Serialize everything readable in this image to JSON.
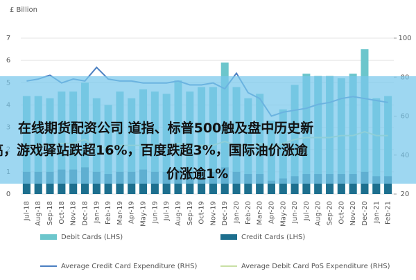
{
  "chart_data": {
    "type": "bar",
    "y_label": "£ Billion",
    "categories": [
      "Jul-18",
      "Aug-18",
      "Sep-18",
      "Oct-18",
      "Nov-18",
      "Dec-18",
      "Jan-19",
      "Feb-19",
      "Mar-19",
      "Apr-19",
      "May-19",
      "Jun-19",
      "Jul-19",
      "Aug-19",
      "Sep-19",
      "Oct-19",
      "Nov-19",
      "Dec-19",
      "Jan-20",
      "Feb-20",
      "Mar-20",
      "Apr-20",
      "May-20",
      "Jun-20",
      "Jul-20",
      "Aug-20",
      "Sep-20",
      "Oct-20",
      "Nov-20",
      "Dec-20",
      "Jan-21",
      "Feb-21"
    ],
    "series": [
      {
        "name": "Debit Cards (LHS)",
        "type": "bar",
        "color": "#6cc6cc",
        "values": [
          4.4,
          4.4,
          4.3,
          4.6,
          4.6,
          5.0,
          4.3,
          4.0,
          4.6,
          4.3,
          4.7,
          4.6,
          4.5,
          5.1,
          4.6,
          4.8,
          4.8,
          5.9,
          4.8,
          4.3,
          4.5,
          3.3,
          3.8,
          4.9,
          5.4,
          5.3,
          5.3,
          5.2,
          5.4,
          6.5,
          4.3,
          4.4
        ]
      },
      {
        "name": "Credit Cards (LHS)",
        "type": "bar",
        "color": "#1d6f8e",
        "values": [
          1.0,
          1.0,
          1.0,
          1.1,
          1.1,
          1.2,
          1.0,
          0.9,
          1.0,
          1.0,
          1.1,
          1.0,
          1.0,
          1.1,
          1.0,
          1.1,
          1.0,
          1.2,
          1.0,
          0.9,
          0.9,
          0.6,
          0.7,
          0.8,
          0.9,
          0.9,
          0.9,
          0.9,
          0.9,
          1.0,
          0.8,
          0.8
        ]
      },
      {
        "name": "Average Credit Card Expenditure (RHS)",
        "type": "line",
        "axis": "y2",
        "color": "#4a7fc1",
        "values": [
          78,
          79,
          81,
          77,
          79,
          78,
          85,
          79,
          78,
          78,
          77,
          77,
          77,
          78,
          76,
          76,
          77,
          74,
          82,
          72,
          69,
          60,
          62,
          63,
          64,
          66,
          67,
          69,
          70,
          69,
          68,
          67
        ]
      },
      {
        "name": "Average Debit Card PoS Expenditure (RHS)",
        "type": "line",
        "axis": "y2",
        "color": "#c8e0a4",
        "values": [
          45,
          45,
          45,
          46,
          46,
          48,
          44,
          44,
          45,
          45,
          45,
          45,
          45,
          46,
          45,
          45,
          45,
          47,
          45,
          45,
          46,
          44,
          46,
          48,
          49,
          49,
          49,
          50,
          50,
          52,
          50,
          50
        ]
      }
    ],
    "ylim": [
      0,
      7
    ],
    "yticks": [
      0,
      1,
      2,
      3,
      4,
      5,
      6,
      7
    ],
    "y2lim": [
      20,
      100
    ],
    "y2ticks": [
      20,
      40,
      60,
      80,
      100
    ]
  },
  "overlay": {
    "lines": [
      "在线期货配资公司 道指、标普500触及盘中历史新",
      "高，游戏驿站跌超16%，百度跌超3%，国际油价涨逾",
      "价涨逾1%"
    ]
  }
}
